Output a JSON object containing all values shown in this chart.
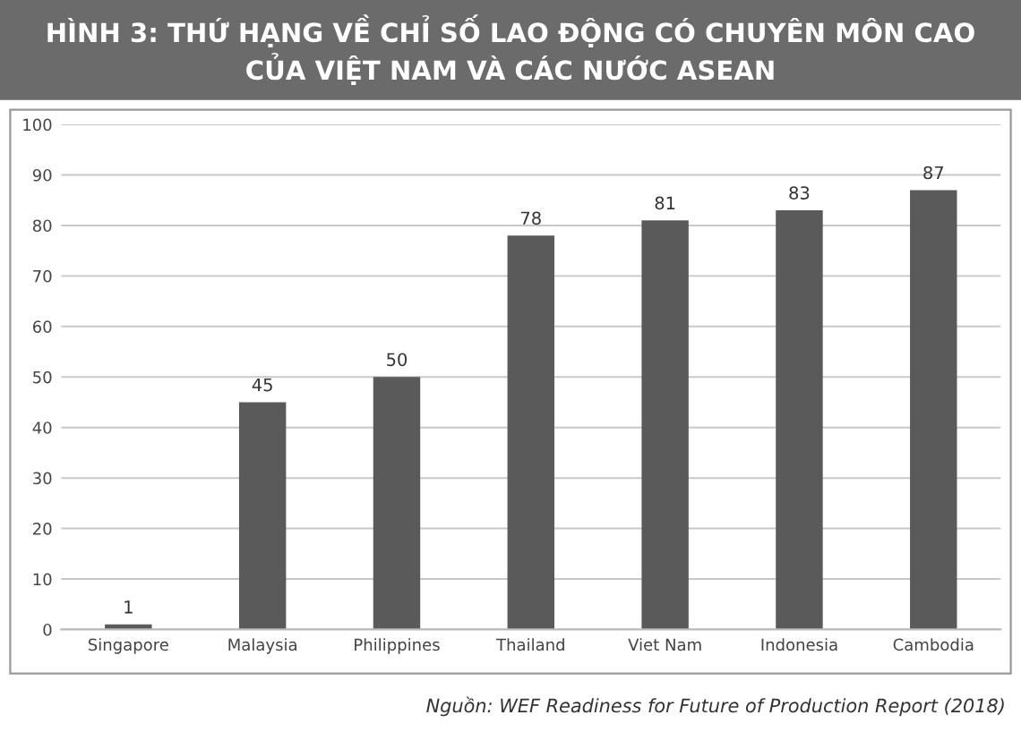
{
  "chart_data": {
    "type": "bar",
    "title": "HÌNH 3: THỨ HẠNG VỀ CHỈ SỐ LAO ĐỘNG CÓ CHUYÊN MÔN CAO\nCỦA VIỆT NAM VÀ CÁC NƯỚC ASEAN",
    "categories": [
      "Singapore",
      "Malaysia",
      "Philippines",
      "Thailand",
      "Viet Nam",
      "Indonesia",
      "Cambodia"
    ],
    "values": [
      1,
      45,
      50,
      78,
      81,
      83,
      87
    ],
    "color": "#5a5a5a",
    "ylim": [
      0,
      100
    ],
    "yticks": [
      0,
      10,
      20,
      30,
      40,
      50,
      60,
      70,
      80,
      90,
      100
    ],
    "grid": "y",
    "data_labels": true,
    "annotations": [
      "Nguồn: WEF Readiness for Future of Production Report (2018)"
    ]
  }
}
